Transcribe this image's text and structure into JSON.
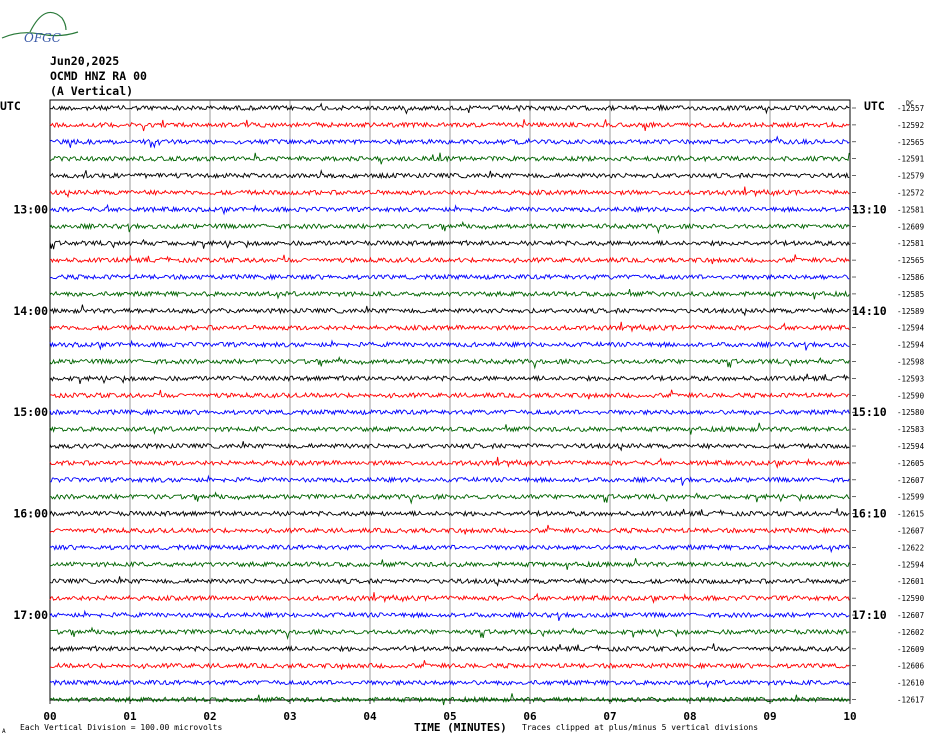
{
  "logo_text": "OFGC",
  "header": {
    "date": "Jun20,2025",
    "station": "OCMD HNZ RA 00",
    "component": "(A Vertical)"
  },
  "utc_left_label": "UTC",
  "utc_right_label": "UTC",
  "dc_label": "DC",
  "footer": {
    "note_left": "Each Vertical Division =  100.00 microvolts",
    "xlabel": "TIME (MINUTES)",
    "note_right": "Traces clipped at plus/minus 5 vertical divisions",
    "corner_mark": "A"
  },
  "colors": [
    "#000000",
    "#ff0000",
    "#0000ff",
    "#006400"
  ],
  "chart_data": {
    "type": "line",
    "title": "Jun20,2025 OCMD HNZ RA 00 (A Vertical)",
    "xlabel": "TIME (MINUTES)",
    "ylabel": "",
    "xlim": [
      0,
      10
    ],
    "x_ticks": [
      "00",
      "01",
      "02",
      "03",
      "04",
      "05",
      "06",
      "07",
      "08",
      "09",
      "10"
    ],
    "left_time_labels": [
      {
        "row": 6,
        "label": "13:00"
      },
      {
        "row": 12,
        "label": "14:00"
      },
      {
        "row": 18,
        "label": "15:00"
      },
      {
        "row": 24,
        "label": "16:00"
      },
      {
        "row": 30,
        "label": "17:00"
      }
    ],
    "right_time_labels": [
      {
        "row": 6,
        "label": "13:10"
      },
      {
        "row": 12,
        "label": "14:10"
      },
      {
        "row": 18,
        "label": "15:10"
      },
      {
        "row": 24,
        "label": "16:10"
      },
      {
        "row": 30,
        "label": "17:10"
      }
    ],
    "trace_dc_offsets": [
      -12557,
      -12592,
      -12565,
      -12591,
      -12579,
      -12572,
      -12581,
      -12609,
      -12581,
      -12565,
      -12586,
      -12585,
      -12589,
      -12594,
      -12594,
      -12598,
      -12593,
      -12590,
      -12580,
      -12583,
      -12594,
      -12605,
      -12607,
      -12599,
      -12615,
      -12607,
      -12622,
      -12594,
      -12601,
      -12590,
      -12607,
      -12602,
      -12609,
      -12606,
      -12610,
      -12617
    ],
    "trace_color_cycle": [
      "black",
      "red",
      "blue",
      "green"
    ],
    "grid": true
  }
}
